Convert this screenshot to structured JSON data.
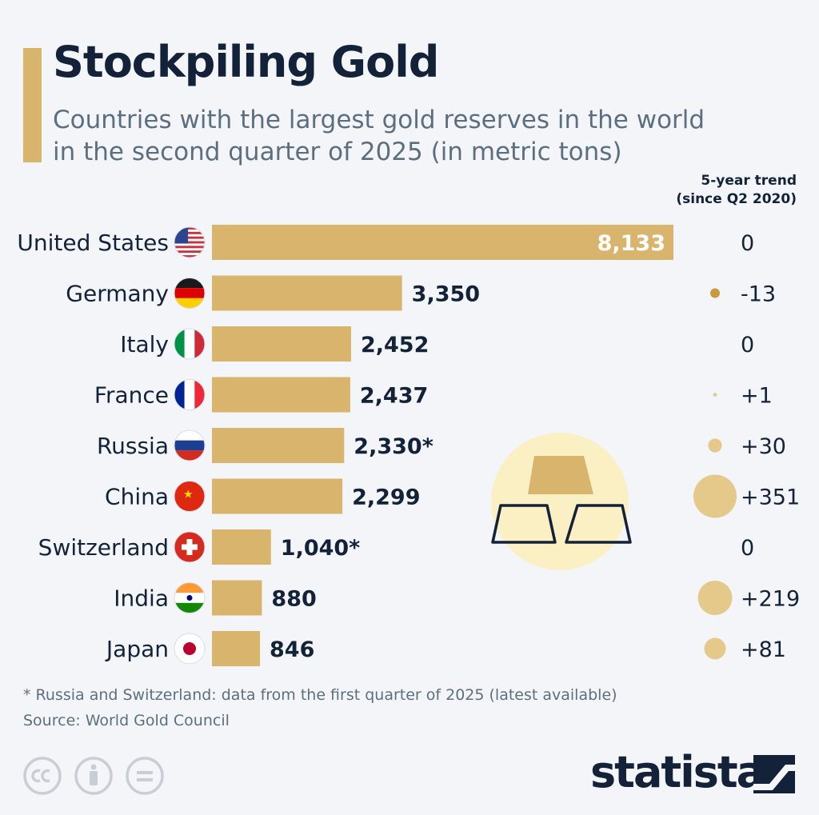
{
  "title": "Stockpiling Gold",
  "subtitle": "Countries with the largest gold reserves in the world in the second quarter of 2025 (in metric tons)",
  "trend_header": {
    "line1": "5-year trend",
    "line2": "(since Q2 2020)"
  },
  "footnote": "* Russia and Switzerland: data from the first quarter of 2025 (latest available)",
  "source": "Source: World Gold Council",
  "brand": "statista",
  "colors": {
    "bar": "#d9b46d",
    "text": "#132238",
    "muted": "#5c6f80",
    "accent": "#d9b46d",
    "background": "#f3f5f9"
  },
  "chart_data": {
    "type": "bar",
    "orientation": "horizontal",
    "categories": [
      "United States",
      "Germany",
      "Italy",
      "France",
      "Russia",
      "China",
      "Switzerland",
      "India",
      "Japan"
    ],
    "values": [
      8133,
      3350,
      2452,
      2437,
      2330,
      2299,
      1040,
      880,
      846
    ],
    "value_labels": [
      "8,133",
      "3,350",
      "2,452",
      "2,437",
      "2,330*",
      "2,299",
      "1,040*",
      "880",
      "846"
    ],
    "trend": [
      0,
      -13,
      0,
      1,
      30,
      351,
      0,
      219,
      81
    ],
    "trend_labels": [
      "0",
      "-13",
      "0",
      "+1",
      "+30",
      "+351",
      "0",
      "+219",
      "+81"
    ],
    "flag_icons": [
      "us-flag-icon",
      "germany-flag-icon",
      "italy-flag-icon",
      "france-flag-icon",
      "russia-flag-icon",
      "china-flag-icon",
      "switzerland-flag-icon",
      "india-flag-icon",
      "japan-flag-icon"
    ],
    "xlim": [
      0,
      8133
    ],
    "grid": false,
    "legend": "none"
  }
}
